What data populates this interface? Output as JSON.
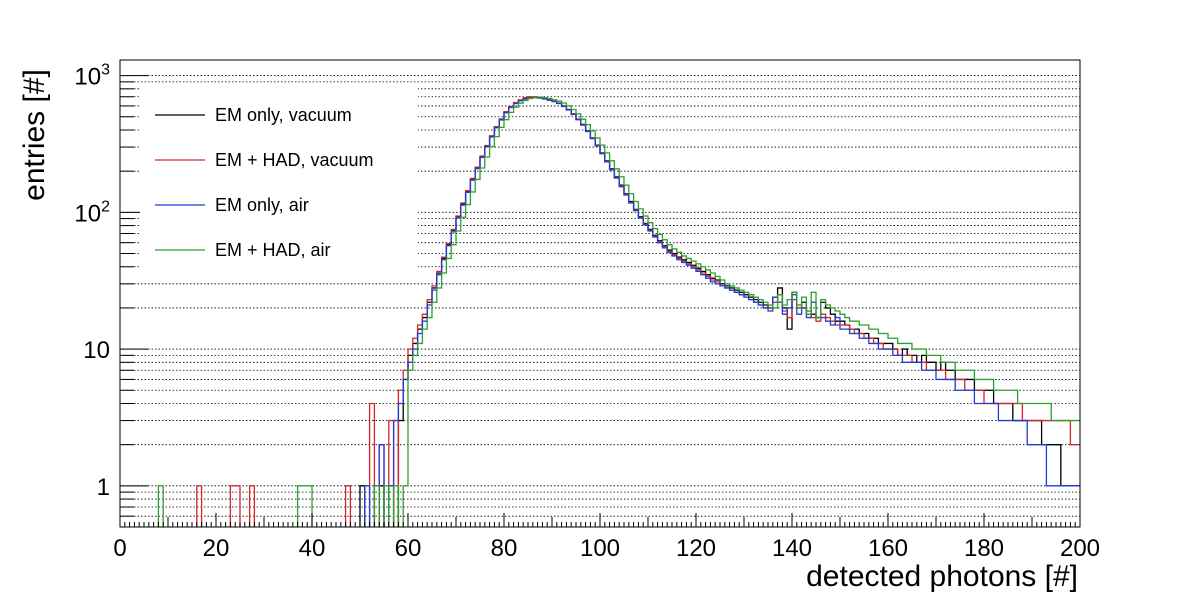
{
  "chart_data": {
    "type": "line",
    "style": "step-histogram",
    "xlabel": "detected photons [#]",
    "ylabel": "entries [#]",
    "xlim": [
      0,
      200
    ],
    "ylim": [
      0.5,
      1300
    ],
    "y_scale": "log",
    "grid": "horizontal dotted",
    "legend_position": "top-left",
    "x_ticks": [
      "0",
      "20",
      "40",
      "60",
      "80",
      "100",
      "120",
      "140",
      "160",
      "180",
      "200"
    ],
    "y_ticks": [
      {
        "value": 1,
        "label": "1"
      },
      {
        "value": 10,
        "label": "10"
      },
      {
        "value": 100,
        "label": "10",
        "exp": "2"
      },
      {
        "value": 1000,
        "label": "10",
        "exp": "3"
      }
    ],
    "bin_width": 1,
    "x": [
      0,
      1,
      2,
      3,
      4,
      5,
      6,
      7,
      8,
      9,
      10,
      11,
      12,
      13,
      14,
      15,
      16,
      17,
      18,
      19,
      20,
      21,
      22,
      23,
      24,
      25,
      26,
      27,
      28,
      29,
      30,
      31,
      32,
      33,
      34,
      35,
      36,
      37,
      38,
      39,
      40,
      41,
      42,
      43,
      44,
      45,
      46,
      47,
      48,
      49,
      50,
      51,
      52,
      53,
      54,
      55,
      56,
      57,
      58,
      59,
      60,
      61,
      62,
      63,
      64,
      65,
      66,
      67,
      68,
      69,
      70,
      71,
      72,
      73,
      74,
      75,
      76,
      77,
      78,
      79,
      80,
      81,
      82,
      83,
      84,
      85,
      86,
      87,
      88,
      89,
      90,
      91,
      92,
      93,
      94,
      95,
      96,
      97,
      98,
      99,
      100,
      101,
      102,
      103,
      104,
      105,
      106,
      107,
      108,
      109,
      110,
      111,
      112,
      113,
      114,
      115,
      116,
      117,
      118,
      119,
      120,
      121,
      122,
      123,
      124,
      125,
      126,
      127,
      128,
      129,
      130,
      131,
      132,
      133,
      134,
      135,
      136,
      137,
      138,
      139,
      140,
      141,
      142,
      143,
      144,
      145,
      146,
      147,
      148,
      149,
      150,
      151,
      152,
      153,
      154,
      155,
      156,
      157,
      158,
      159,
      160,
      161,
      162,
      163,
      164,
      165,
      166,
      167,
      168,
      169,
      170,
      171,
      172,
      173,
      174,
      175,
      176,
      177,
      178,
      179,
      180,
      181,
      182,
      183,
      184,
      185,
      186,
      187,
      188,
      189,
      190,
      191,
      192,
      193,
      194,
      195,
      196,
      197,
      198,
      199
    ],
    "series": [
      {
        "name": "EM only, vacuum",
        "color": "#000000",
        "values": [
          0,
          0,
          0,
          0,
          0,
          0,
          0,
          0,
          0,
          0,
          0,
          0,
          0,
          0,
          0,
          0,
          0,
          0,
          0,
          0,
          0,
          0,
          0,
          0,
          0,
          0,
          0,
          0,
          0,
          0,
          0,
          0,
          0,
          0,
          0,
          0,
          0,
          0,
          0,
          0,
          0,
          0,
          0,
          0,
          0,
          0,
          0,
          0,
          0,
          0,
          1,
          0,
          0,
          0,
          1,
          0,
          1,
          0,
          3,
          6,
          9,
          11,
          14,
          17,
          22,
          28,
          36,
          46,
          58,
          74,
          93,
          115,
          142,
          175,
          212,
          255,
          305,
          360,
          420,
          478,
          540,
          590,
          630,
          660,
          680,
          690,
          695,
          690,
          680,
          665,
          650,
          630,
          600,
          565,
          525,
          480,
          440,
          395,
          350,
          310,
          272,
          238,
          208,
          182,
          158,
          137,
          120,
          105,
          93,
          83,
          75,
          68,
          62,
          57,
          53,
          50,
          47,
          45,
          43,
          41,
          39,
          37,
          35,
          33,
          32,
          30,
          29,
          28,
          27,
          26,
          25,
          24,
          23,
          22,
          21,
          20,
          24,
          28,
          20,
          14,
          26,
          20,
          22,
          18,
          18,
          17,
          22,
          20,
          18,
          16,
          16,
          15,
          14,
          14,
          13,
          13,
          12,
          12,
          11,
          11,
          11,
          10,
          9,
          10,
          9,
          9,
          8,
          9,
          8,
          8,
          7,
          8,
          7,
          7,
          6,
          6,
          6,
          6,
          5,
          5,
          5,
          5,
          4,
          4,
          4,
          4,
          3,
          3,
          3,
          3,
          3,
          3,
          2,
          2,
          2,
          2,
          1,
          1,
          1,
          1
        ]
      },
      {
        "name": "EM + HAD, vacuum",
        "color": "#d62728",
        "values": [
          0,
          0,
          0,
          0,
          0,
          0,
          0,
          0,
          0,
          0,
          0,
          0,
          0,
          0,
          0,
          0,
          1,
          0,
          0,
          0,
          0,
          0,
          0,
          1,
          1,
          0,
          0,
          1,
          0,
          0,
          0,
          0,
          0,
          0,
          0,
          0,
          0,
          0,
          0,
          0,
          0,
          0,
          0,
          0,
          0,
          0,
          0,
          1,
          0,
          0,
          0,
          0,
          4,
          0,
          2,
          0,
          3,
          0,
          5,
          7,
          10,
          12,
          15,
          18,
          23,
          29,
          37,
          47,
          59,
          75,
          94,
          117,
          144,
          177,
          214,
          258,
          308,
          363,
          423,
          482,
          545,
          595,
          635,
          665,
          690,
          700,
          700,
          695,
          685,
          670,
          650,
          628,
          598,
          562,
          522,
          478,
          436,
          392,
          348,
          308,
          270,
          236,
          206,
          180,
          156,
          136,
          118,
          104,
          92,
          82,
          74,
          67,
          61,
          56,
          52,
          49,
          46,
          44,
          42,
          40,
          38,
          36,
          34,
          32,
          31,
          29,
          28,
          27,
          26,
          25,
          24,
          23,
          22,
          21,
          20,
          20,
          22,
          25,
          19,
          17,
          23,
          21,
          20,
          19,
          17,
          16,
          18,
          17,
          16,
          15,
          15,
          15,
          14,
          13,
          13,
          12,
          12,
          11,
          11,
          10,
          10,
          10,
          9,
          9,
          9,
          8,
          8,
          8,
          7,
          7,
          7,
          7,
          6,
          6,
          6,
          6,
          5,
          5,
          5,
          5,
          4,
          4,
          4,
          4,
          4,
          4,
          4,
          4,
          3,
          3,
          3,
          3,
          3,
          3,
          3,
          3,
          3,
          3,
          2,
          2
        ]
      },
      {
        "name": "EM only, air",
        "color": "#1f3cd6",
        "values": [
          0,
          0,
          0,
          0,
          0,
          0,
          0,
          0,
          0,
          0,
          0,
          0,
          0,
          0,
          0,
          0,
          0,
          0,
          0,
          0,
          0,
          0,
          0,
          0,
          0,
          0,
          0,
          0,
          0,
          0,
          0,
          0,
          0,
          0,
          0,
          0,
          0,
          0,
          0,
          0,
          0,
          0,
          0,
          0,
          0,
          0,
          0,
          0,
          0,
          0,
          0,
          1,
          0,
          1,
          2,
          0,
          1,
          3,
          4,
          6,
          8,
          10,
          13,
          16,
          21,
          27,
          35,
          45,
          57,
          72,
          91,
          113,
          140,
          172,
          209,
          252,
          301,
          356,
          416,
          474,
          535,
          585,
          625,
          655,
          675,
          685,
          690,
          685,
          675,
          660,
          645,
          625,
          595,
          560,
          520,
          476,
          434,
          390,
          346,
          306,
          268,
          234,
          204,
          178,
          154,
          134,
          117,
          103,
          91,
          81,
          73,
          66,
          60,
          55,
          51,
          48,
          45,
          43,
          41,
          39,
          37,
          35,
          33,
          31,
          30,
          29,
          28,
          27,
          26,
          25,
          24,
          23,
          22,
          21,
          20,
          19,
          24,
          22,
          18,
          20,
          25,
          18,
          20,
          17,
          22,
          17,
          17,
          16,
          15,
          17,
          14,
          14,
          13,
          13,
          12,
          12,
          11,
          11,
          10,
          10,
          10,
          9,
          9,
          8,
          8,
          8,
          8,
          7,
          7,
          7,
          6,
          6,
          6,
          6,
          5,
          5,
          5,
          5,
          4,
          4,
          4,
          4,
          4,
          3,
          3,
          3,
          3,
          3,
          3,
          2,
          2,
          2,
          2,
          1,
          1,
          1,
          1,
          1,
          1,
          1
        ]
      },
      {
        "name": "EM + HAD, air",
        "color": "#2ca02c",
        "values": [
          0,
          0,
          0,
          0,
          0,
          0,
          0,
          0,
          1,
          0,
          0,
          0,
          0,
          0,
          0,
          0,
          0,
          0,
          0,
          0,
          0,
          0,
          0,
          0,
          0,
          0,
          0,
          0,
          0,
          0,
          0,
          0,
          0,
          0,
          0,
          0,
          0,
          1,
          1,
          1,
          0,
          0,
          0,
          0,
          0,
          0,
          0,
          0,
          0,
          0,
          0,
          0,
          0,
          1,
          0,
          1,
          0,
          1,
          0,
          1,
          7,
          9,
          11,
          14,
          17,
          22,
          28,
          36,
          46,
          58,
          73,
          92,
          114,
          141,
          174,
          211,
          254,
          303,
          358,
          418,
          476,
          538,
          588,
          628,
          658,
          680,
          690,
          695,
          690,
          680,
          665,
          650,
          630,
          600,
          565,
          525,
          480,
          438,
          394,
          350,
          310,
          272,
          238,
          208,
          182,
          158,
          137,
          120,
          106,
          94,
          84,
          76,
          69,
          63,
          58,
          54,
          51,
          48,
          46,
          44,
          42,
          40,
          38,
          36,
          34,
          32,
          30,
          29,
          28,
          27,
          26,
          25,
          24,
          23,
          22,
          21,
          20,
          25,
          21,
          23,
          26,
          20,
          24,
          18,
          26,
          17,
          23,
          21,
          20,
          19,
          18,
          17,
          16,
          16,
          15,
          15,
          14,
          14,
          13,
          13,
          12,
          12,
          11,
          11,
          11,
          10,
          10,
          10,
          9,
          9,
          9,
          8,
          8,
          8,
          7,
          7,
          7,
          7,
          6,
          6,
          6,
          6,
          5,
          5,
          5,
          5,
          5,
          4,
          4,
          4,
          4,
          4,
          4,
          4,
          3,
          3,
          3,
          3,
          3,
          3
        ]
      }
    ]
  }
}
